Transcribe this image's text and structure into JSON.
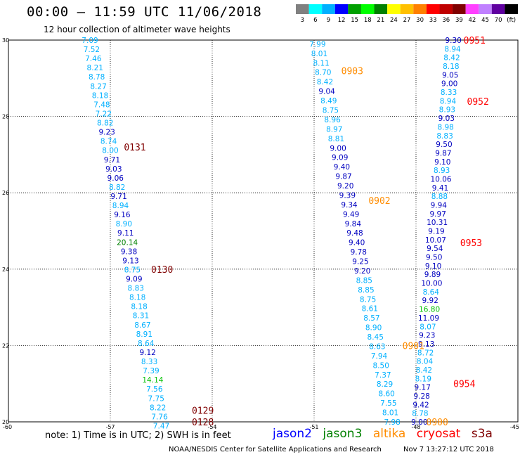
{
  "title": "00:00  —  11:59 UTC 11/06/2018",
  "subtitle": "12 hour collection of altimeter wave heights",
  "note": "note: 1) Time is in UTC; 2) SWH is in feet",
  "credit": "NOAA/NESDIS Center for Satellite Applications and Research",
  "timestamp": "Nov  7 13:27:12 UTC 2018",
  "colorbar": {
    "labels": [
      "3",
      "6",
      "9",
      "12",
      "15",
      "18",
      "21",
      "24",
      "27",
      "30",
      "33",
      "36",
      "39",
      "42",
      "45",
      "70",
      "(ft)"
    ],
    "colors": [
      "#808080",
      "#00ffff",
      "#00b0ff",
      "#0000ff",
      "#00a000",
      "#00ff00",
      "#008000",
      "#ffff00",
      "#ffc000",
      "#ff8000",
      "#ff0000",
      "#c00000",
      "#800000",
      "#ff40ff",
      "#c080ff",
      "#6000a0",
      "#000000"
    ]
  },
  "legend": [
    {
      "name": "jason2",
      "color": "#0000ff"
    },
    {
      "name": "jason3",
      "color": "#008000"
    },
    {
      "name": "altika",
      "color": "#ff8c00"
    },
    {
      "name": "cryosat",
      "color": "#ff0000"
    },
    {
      "name": "s3a",
      "color": "#800000"
    }
  ],
  "chart_data": {
    "type": "scatter",
    "title": "00:00  —  11:59 UTC 11/06/2018",
    "xlim": [
      -60,
      -45
    ],
    "ylim": [
      20,
      30
    ],
    "xticks": [
      -60,
      -57,
      -54,
      -51,
      -48,
      -45
    ],
    "yticks": [
      20,
      22,
      24,
      26,
      28,
      30
    ],
    "xtick_labels": [
      "-60",
      "-57",
      "-54",
      "-51",
      "-48",
      "-45"
    ],
    "ytick_labels": [
      "20",
      "22",
      "24",
      "26",
      "28",
      "30"
    ],
    "grid": true,
    "band_colors": {
      "3-6": "#00b0ff",
      "6-9": "#00b0ff",
      "9-12": "#0000c0",
      "12-15": "#00c000",
      "15-18": "#00c000",
      "18-21": "#008000"
    },
    "tracks": [
      {
        "values": [
          "7.09",
          "7.52",
          "7.46",
          "8.21",
          "8.78",
          "8.27",
          "8.18",
          "7.48",
          "7.22",
          "8.82",
          "9.23",
          "8.74",
          "8.00",
          "9.71",
          "9.03",
          "9.06",
          "8.82",
          "9.71",
          "8.94",
          "9.16",
          "8.90",
          "9.11",
          "20.14",
          "9.38",
          "9.13",
          "8.75",
          "9.09",
          "8.83",
          "8.18",
          "8.18",
          "8.31",
          "8.67",
          "8.91",
          "8.64",
          "9.12",
          "8.33",
          "7.39",
          "14.14",
          "7.56",
          "7.75",
          "8.22",
          "7.76",
          "7.47"
        ],
        "x_top": -57.6,
        "y_top": 30.0,
        "x_bottom": -55.5,
        "y_bottom": 19.9
      },
      {
        "values": [
          "7.99",
          "8.01",
          "8.11",
          "8.70",
          "8.42",
          "9.04",
          "8.49",
          "8.75",
          "8.96",
          "8.97",
          "8.81",
          "9.00",
          "9.09",
          "9.40",
          "9.87",
          "9.20",
          "9.39",
          "9.34",
          "9.49",
          "9.84",
          "9.48",
          "9.40",
          "9.78",
          "9.25",
          "9.20",
          "8.85",
          "8.85",
          "8.75",
          "8.61",
          "8.57",
          "8.90",
          "8.45",
          "8.63",
          "7.94",
          "8.50",
          "7.37",
          "8.29",
          "8.60",
          "7.55",
          "8.01",
          "7.98"
        ],
        "x_top": -50.9,
        "y_top": 29.9,
        "x_bottom": -48.7,
        "y_bottom": 20.0
      },
      {
        "values": [
          "9.30",
          "8.94",
          "8.42",
          "8.18",
          "9.05",
          "9.00",
          "8.33",
          "8.94",
          "8.93",
          "9.03",
          "8.98",
          "8.83",
          "9.50",
          "9.87",
          "9.10",
          "8.93",
          "10.06",
          "9.41",
          "8.88",
          "9.94",
          "9.97",
          "10.31",
          "9.19",
          "10.07",
          "9.54",
          "9.50",
          "9.10",
          "9.89",
          "10.00",
          "8.64",
          "9.92",
          "16.80",
          "11.09",
          "8.07",
          "9.23",
          "9.13",
          "8.72",
          "8.04",
          "8.42",
          "8.19",
          "9.17",
          "9.28",
          "9.42",
          "8.78",
          "9.00"
        ],
        "x_top": -46.9,
        "y_top": 30.0,
        "x_bottom": -47.9,
        "y_bottom": 20.0
      }
    ],
    "pass_labels": [
      {
        "text": "0951",
        "satellite": "cryosat",
        "lon": -46.6,
        "lat": 30.0
      },
      {
        "text": "0952",
        "satellite": "cryosat",
        "lon": -46.5,
        "lat": 28.4
      },
      {
        "text": "0953",
        "satellite": "cryosat",
        "lon": -46.7,
        "lat": 24.7
      },
      {
        "text": "0954",
        "satellite": "cryosat",
        "lon": -46.9,
        "lat": 21.0
      },
      {
        "text": "0131",
        "satellite": "s3a",
        "lon": -56.6,
        "lat": 27.2
      },
      {
        "text": "0130",
        "satellite": "s3a",
        "lon": -55.8,
        "lat": 24.0
      },
      {
        "text": "0129",
        "satellite": "s3a",
        "lon": -54.6,
        "lat": 20.3
      },
      {
        "text": "0128",
        "satellite": "s3a",
        "lon": -54.6,
        "lat": 20.0
      },
      {
        "text": "0903",
        "satellite": "altika",
        "lon": -50.2,
        "lat": 29.2
      },
      {
        "text": "0902",
        "satellite": "altika",
        "lon": -49.4,
        "lat": 25.8
      },
      {
        "text": "0901",
        "satellite": "altika",
        "lon": -48.4,
        "lat": 22.0
      },
      {
        "text": "0900",
        "satellite": "altika",
        "lon": -47.7,
        "lat": 20.0
      }
    ]
  }
}
